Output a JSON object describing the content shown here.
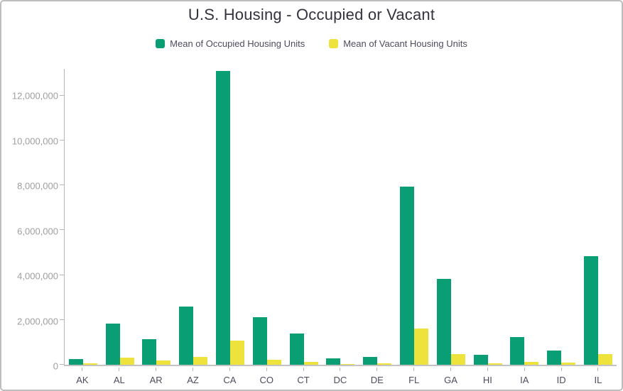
{
  "title": "U.S. Housing - Occupied or Vacant",
  "legend": {
    "items": [
      {
        "label": "Mean of Occupied Housing Units",
        "color": "#0a9e74"
      },
      {
        "label": "Mean of Vacant Housing Units",
        "color": "#eee23d"
      }
    ]
  },
  "chart_data": {
    "type": "bar",
    "title": "U.S. Housing - Occupied or Vacant",
    "categories": [
      "AK",
      "AL",
      "AR",
      "AZ",
      "CA",
      "CO",
      "CT",
      "DC",
      "DE",
      "FL",
      "GA",
      "HI",
      "IA",
      "ID",
      "IL"
    ],
    "series": [
      {
        "name": "Mean of Occupied Housing Units",
        "color": "#0a9e74",
        "values": [
          250000,
          1830000,
          1150000,
          2610000,
          13100000,
          2110000,
          1380000,
          280000,
          350000,
          7950000,
          3820000,
          440000,
          1250000,
          620000,
          4850000
        ]
      },
      {
        "name": "Mean of Vacant Housing Units",
        "color": "#eee23d",
        "values": [
          60000,
          330000,
          190000,
          350000,
          1070000,
          220000,
          140000,
          30000,
          60000,
          1600000,
          460000,
          70000,
          120000,
          80000,
          470000
        ]
      }
    ],
    "xlabel": "",
    "ylabel": "",
    "ylim": [
      0,
      13200000
    ],
    "yticks": [
      0,
      2000000,
      4000000,
      6000000,
      8000000,
      10000000,
      12000000
    ],
    "ytick_labels": [
      "0",
      "2,000,000",
      "4,000,000",
      "6,000,000",
      "8,000,000",
      "10,000,000",
      "12,000,000"
    ],
    "grid": false,
    "legend_position": "top"
  },
  "colors": {
    "axis_line": "#b6b6b6",
    "ytick_text": "#9e9e9e",
    "xtick_text": "#4c4c5e",
    "title_text": "#33333d",
    "frame_border": "#bdbdbd",
    "background": "#ffffff"
  }
}
